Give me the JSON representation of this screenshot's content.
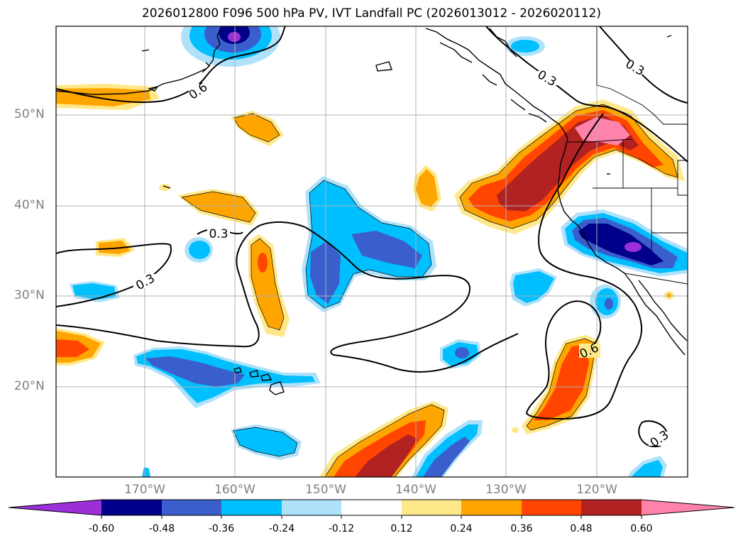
{
  "title": "2026012800 F096 500 hPa PV, IVT Landfall PC (2026013012 - 2026020112)",
  "lat_labels": [
    "50°N",
    "40°N",
    "30°N",
    "20°N"
  ],
  "lon_labels": [
    "170°W",
    "160°W",
    "150°W",
    "140°W",
    "130°W",
    "120°W"
  ],
  "contour_labels": [
    "0.6",
    "0.3",
    "0.3",
    "0.3",
    "0.3",
    "0.6",
    "0.3"
  ],
  "colorbar": {
    "ticks": [
      "-0.60",
      "-0.48",
      "-0.36",
      "-0.24",
      "-0.12",
      "0.12",
      "0.24",
      "0.36",
      "0.48",
      "0.60"
    ],
    "colors": [
      "#9b30d9",
      "#00008b",
      "#3a5fcd",
      "#00bfff",
      "#afe2fa",
      "#ffffff",
      "#ffe88a",
      "#ffa500",
      "#ff4500",
      "#b22222",
      "#ff82ab"
    ],
    "extend": "both"
  },
  "colors": {
    "v_neg060": "#9b30d9",
    "v_neg048": "#00008b",
    "v_neg036": "#3a5fcd",
    "v_neg024": "#00bfff",
    "v_neg012": "#afe2fa",
    "v_pos012": "#ffe88a",
    "v_pos024": "#ffa500",
    "v_pos036": "#ff4500",
    "v_pos048": "#b22222",
    "v_pos060": "#ff82ab"
  }
}
